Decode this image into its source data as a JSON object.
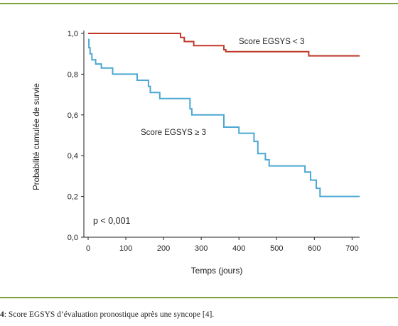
{
  "chart_data": {
    "type": "line",
    "step": true,
    "xlabel": "Temps (jours)",
    "ylabel": "Probabilité cumulée de survie",
    "xlim": [
      0,
      720
    ],
    "ylim": [
      0,
      1
    ],
    "xticks": [
      0,
      100,
      200,
      300,
      400,
      500,
      600,
      700
    ],
    "yticks": [
      0,
      0.2,
      0.4,
      0.6,
      0.8,
      1.0
    ],
    "yticklabels": [
      "0,0",
      "0,2",
      "0,4",
      "0,6",
      "0,8",
      "1,0"
    ],
    "grid": false,
    "annotation": "p < 0,001",
    "series": [
      {
        "name": "Score EGSYS < 3",
        "color": "#c0392b",
        "x": [
          0,
          245,
          255,
          280,
          360,
          365,
          585,
          720
        ],
        "y": [
          1.0,
          0.98,
          0.96,
          0.94,
          0.92,
          0.91,
          0.89,
          0.89
        ]
      },
      {
        "name": "Score EGSYS ≥ 3",
        "color": "#4ba8d2",
        "x": [
          0,
          2,
          5,
          10,
          20,
          35,
          65,
          130,
          160,
          165,
          190,
          270,
          275,
          360,
          400,
          440,
          450,
          470,
          480,
          520,
          575,
          590,
          605,
          615,
          720
        ],
        "y": [
          0.97,
          0.93,
          0.9,
          0.87,
          0.85,
          0.83,
          0.8,
          0.77,
          0.74,
          0.71,
          0.68,
          0.63,
          0.6,
          0.54,
          0.51,
          0.47,
          0.41,
          0.38,
          0.35,
          0.35,
          0.32,
          0.28,
          0.24,
          0.2,
          0.2
        ]
      }
    ]
  },
  "caption": {
    "number": "4",
    "text": ": Score EGSYS d’évaluation pronostique après une syncope [4]."
  }
}
